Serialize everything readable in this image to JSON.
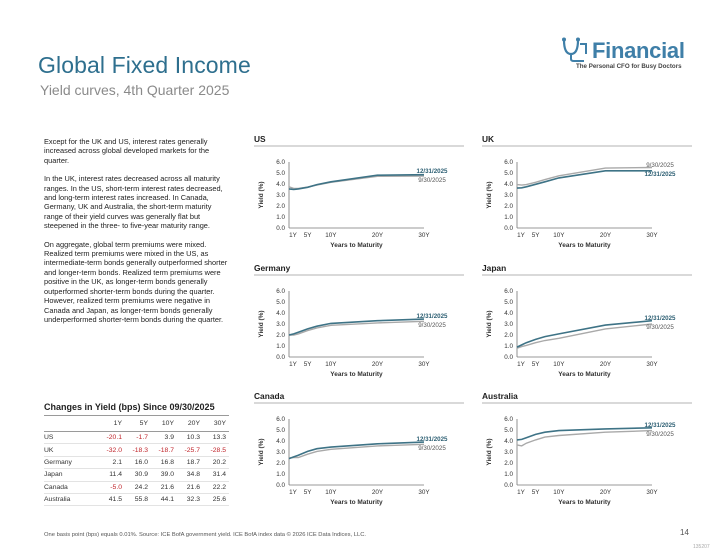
{
  "header": {
    "title": "Global Fixed Income",
    "subtitle": "Yield curves, 4th Quarter 2025"
  },
  "logo": {
    "word": "Financial",
    "tagline": "The Personal CFO for Busy Doctors"
  },
  "commentary": [
    "Except for the UK and US, interest rates generally increased across global developed markets for the quarter.",
    "In the UK, interest rates decreased across all maturity ranges. In the US, short-term interest rates decreased, and long-term interest rates increased. In Canada, Germany, UK and Australia, the short-term maturity range of their yield curves was generally flat but steepened in the three- to five-year maturity range.",
    "On aggregate, global term premiums were mixed. Realized term premiums were mixed in the US, as intermediate-term bonds generally outperformed shorter and longer-term bonds. Realized term premiums were positive in the UK, as longer-term bonds generally outperformed shorter-term bonds during the quarter. However, realized term premiums were negative in Canada and Japan, as longer-term bonds generally underperformed shorter-term bonds during the quarter."
  ],
  "yield_table": {
    "title": "Changes in Yield (bps) Since 09/30/2025",
    "headers": [
      "",
      "1Y",
      "5Y",
      "10Y",
      "20Y",
      "30Y"
    ],
    "rows": [
      {
        "country": "US",
        "values": [
          "-20.1",
          "-1.7",
          "3.9",
          "10.3",
          "13.3"
        ]
      },
      {
        "country": "UK",
        "values": [
          "-32.0",
          "-18.3",
          "-18.7",
          "-25.7",
          "-28.5"
        ]
      },
      {
        "country": "Germany",
        "values": [
          "2.1",
          "16.0",
          "16.8",
          "18.7",
          "20.2"
        ]
      },
      {
        "country": "Japan",
        "values": [
          "11.4",
          "30.9",
          "39.0",
          "34.8",
          "31.4"
        ]
      },
      {
        "country": "Canada",
        "values": [
          "-5.0",
          "24.2",
          "21.6",
          "21.6",
          "22.2"
        ]
      },
      {
        "country": "Australia",
        "values": [
          "41.5",
          "55.8",
          "44.1",
          "32.3",
          "25.6"
        ]
      }
    ]
  },
  "footer": {
    "footnote": "One basis point (bps) equals 0.01%. Source: ICE BofA government yield. ICE BofA index data © 2026 ICE Data Indices, LLC.",
    "page": "14",
    "doc_id": "135207"
  },
  "colors": {
    "current": "#3e7386",
    "prior": "#a9a9a9",
    "title": "#2e6f8e",
    "negative": "#c0262c"
  },
  "chart_data": [
    {
      "type": "line",
      "title": "US",
      "xlabel": "Years to Maturity",
      "ylabel": "Yield (%)",
      "x": [
        1,
        2,
        3,
        5,
        7,
        10,
        20,
        30
      ],
      "xticks": [
        1,
        5,
        10,
        20,
        30
      ],
      "xticklabels": [
        "1Y",
        "5Y",
        "10Y",
        "20Y",
        "30Y"
      ],
      "ylim": [
        0,
        6
      ],
      "yticks": [
        "0.0",
        "1.0",
        "2.0",
        "3.0",
        "4.0",
        "5.0",
        "6.0"
      ],
      "series": [
        {
          "name": "12/31/2025",
          "values": [
            3.55,
            3.5,
            3.55,
            3.7,
            3.95,
            4.2,
            4.8,
            4.85
          ]
        },
        {
          "name": "9/30/2025",
          "values": [
            3.75,
            3.6,
            3.6,
            3.72,
            3.9,
            4.15,
            4.7,
            4.72
          ]
        }
      ]
    },
    {
      "type": "line",
      "title": "UK",
      "xlabel": "Years to Maturity",
      "ylabel": "Yield (%)",
      "x": [
        1,
        2,
        3,
        5,
        7,
        10,
        20,
        30
      ],
      "xticks": [
        1,
        5,
        10,
        20,
        30
      ],
      "xticklabels": [
        "1Y",
        "5Y",
        "10Y",
        "20Y",
        "30Y"
      ],
      "ylim": [
        0,
        6
      ],
      "yticks": [
        "0.0",
        "1.0",
        "2.0",
        "3.0",
        "4.0",
        "5.0",
        "6.0"
      ],
      "series": [
        {
          "name": "9/30/2025",
          "values": [
            3.95,
            3.9,
            3.95,
            4.15,
            4.4,
            4.75,
            5.45,
            5.5
          ]
        },
        {
          "name": "12/31/2025",
          "values": [
            3.63,
            3.65,
            3.75,
            3.97,
            4.2,
            4.55,
            5.2,
            5.2
          ]
        }
      ]
    },
    {
      "type": "line",
      "title": "Germany",
      "xlabel": "Years to Maturity",
      "ylabel": "Yield (%)",
      "x": [
        1,
        2,
        3,
        5,
        7,
        10,
        20,
        30
      ],
      "xticks": [
        1,
        5,
        10,
        20,
        30
      ],
      "xticklabels": [
        "1Y",
        "5Y",
        "10Y",
        "20Y",
        "30Y"
      ],
      "ylim": [
        0,
        6
      ],
      "yticks": [
        "0.0",
        "1.0",
        "2.0",
        "3.0",
        "4.0",
        "5.0",
        "6.0"
      ],
      "series": [
        {
          "name": "12/31/2025",
          "values": [
            2.0,
            2.1,
            2.25,
            2.55,
            2.8,
            3.05,
            3.3,
            3.45
          ]
        },
        {
          "name": "9/30/2025",
          "values": [
            1.98,
            2.0,
            2.1,
            2.4,
            2.65,
            2.88,
            3.1,
            3.25
          ]
        }
      ]
    },
    {
      "type": "line",
      "title": "Japan",
      "xlabel": "Years to Maturity",
      "ylabel": "Yield (%)",
      "x": [
        1,
        2,
        3,
        5,
        7,
        10,
        20,
        30
      ],
      "xticks": [
        1,
        5,
        10,
        20,
        30
      ],
      "xticklabels": [
        "1Y",
        "5Y",
        "10Y",
        "20Y",
        "30Y"
      ],
      "ylim": [
        0,
        6
      ],
      "yticks": [
        "0.0",
        "1.0",
        "2.0",
        "3.0",
        "4.0",
        "5.0",
        "6.0"
      ],
      "series": [
        {
          "name": "12/31/2025",
          "values": [
            0.9,
            1.1,
            1.3,
            1.6,
            1.85,
            2.1,
            2.9,
            3.3
          ]
        },
        {
          "name": "9/30/2025",
          "values": [
            0.8,
            0.95,
            1.05,
            1.3,
            1.5,
            1.7,
            2.55,
            3.0
          ]
        }
      ]
    },
    {
      "type": "line",
      "title": "Canada",
      "xlabel": "Years to Maturity",
      "ylabel": "Yield (%)",
      "x": [
        1,
        2,
        3,
        5,
        7,
        10,
        20,
        30
      ],
      "xticks": [
        1,
        5,
        10,
        20,
        30
      ],
      "xticklabels": [
        "1Y",
        "5Y",
        "10Y",
        "20Y",
        "30Y"
      ],
      "ylim": [
        0,
        6
      ],
      "yticks": [
        "0.0",
        "1.0",
        "2.0",
        "3.0",
        "4.0",
        "5.0",
        "6.0"
      ],
      "series": [
        {
          "name": "12/31/2025",
          "values": [
            2.4,
            2.55,
            2.7,
            3.05,
            3.3,
            3.45,
            3.75,
            3.9
          ]
        },
        {
          "name": "9/30/2025",
          "values": [
            2.45,
            2.5,
            2.5,
            2.8,
            3.05,
            3.25,
            3.55,
            3.7
          ]
        }
      ]
    },
    {
      "type": "line",
      "title": "Australia",
      "xlabel": "Years to Maturity",
      "ylabel": "Yield (%)",
      "x": [
        1,
        2,
        3,
        5,
        7,
        10,
        20,
        30
      ],
      "xticks": [
        1,
        5,
        10,
        20,
        30
      ],
      "xticklabels": [
        "1Y",
        "5Y",
        "10Y",
        "20Y",
        "30Y"
      ],
      "ylim": [
        0,
        6
      ],
      "yticks": [
        "0.0",
        "1.0",
        "2.0",
        "3.0",
        "4.0",
        "5.0",
        "6.0"
      ],
      "series": [
        {
          "name": "12/31/2025",
          "values": [
            4.1,
            4.15,
            4.3,
            4.6,
            4.8,
            4.95,
            5.1,
            5.2
          ]
        },
        {
          "name": "9/30/2025",
          "values": [
            3.65,
            3.55,
            3.8,
            4.1,
            4.35,
            4.5,
            4.8,
            4.95
          ]
        }
      ]
    }
  ]
}
